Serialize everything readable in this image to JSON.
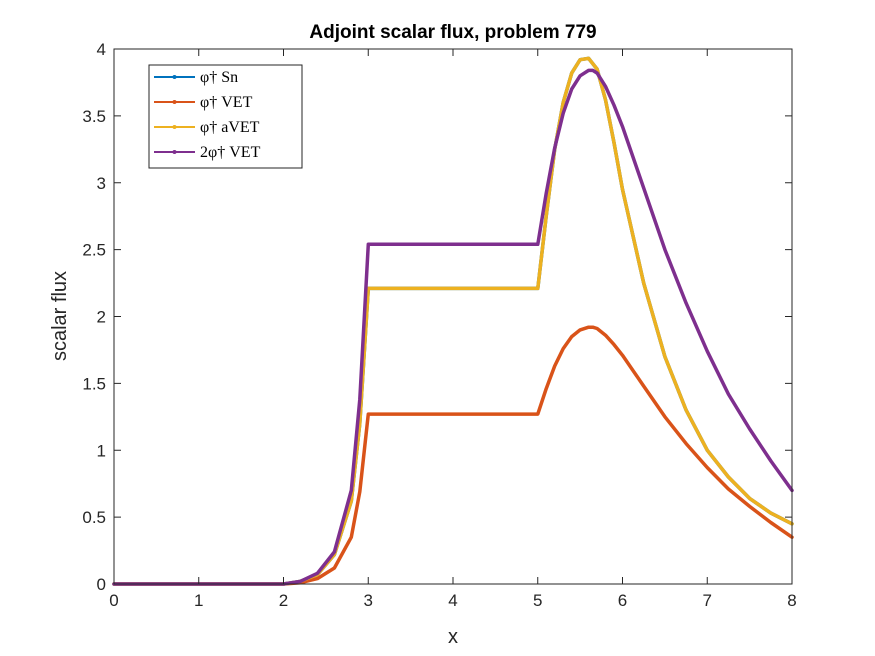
{
  "chart_data": {
    "type": "line",
    "title": "Adjoint scalar flux, problem 779",
    "xlabel": "x",
    "ylabel": "scalar flux",
    "xlim": [
      0,
      8
    ],
    "ylim": [
      0,
      4
    ],
    "xticks": [
      "0",
      "1",
      "2",
      "3",
      "4",
      "5",
      "6",
      "7",
      "8"
    ],
    "yticks": [
      "0",
      "0.5",
      "1",
      "1.5",
      "2",
      "2.5",
      "3",
      "3.5",
      "4"
    ],
    "grid": false,
    "legend_position": "top-left",
    "series": [
      {
        "name": "φ† Sn",
        "color": "#0072BD",
        "x": [
          0,
          1,
          2,
          2.2,
          2.4,
          2.6,
          2.8,
          2.9,
          3.0,
          3.5,
          4.0,
          4.5,
          5.0,
          5.1,
          5.2,
          5.3,
          5.4,
          5.5,
          5.6,
          5.7,
          5.8,
          5.9,
          6.0,
          6.25,
          6.5,
          6.75,
          7.0,
          7.25,
          7.5,
          7.75,
          8.0
        ],
        "y": [
          0,
          0,
          0,
          0.02,
          0.07,
          0.22,
          0.62,
          1.2,
          2.21,
          2.21,
          2.21,
          2.21,
          2.21,
          2.75,
          3.25,
          3.6,
          3.82,
          3.92,
          3.93,
          3.85,
          3.62,
          3.3,
          2.95,
          2.25,
          1.7,
          1.3,
          1.0,
          0.8,
          0.64,
          0.53,
          0.45
        ]
      },
      {
        "name": "φ† VET",
        "color": "#D95319",
        "x": [
          0,
          1,
          2,
          2.2,
          2.4,
          2.6,
          2.8,
          2.9,
          3.0,
          3.5,
          4.0,
          4.5,
          5.0,
          5.1,
          5.2,
          5.3,
          5.4,
          5.5,
          5.6,
          5.65,
          5.7,
          5.8,
          5.9,
          6.0,
          6.25,
          6.5,
          6.75,
          7.0,
          7.25,
          7.5,
          7.75,
          8.0
        ],
        "y": [
          0,
          0,
          0,
          0.01,
          0.04,
          0.12,
          0.35,
          0.69,
          1.27,
          1.27,
          1.27,
          1.27,
          1.27,
          1.46,
          1.63,
          1.76,
          1.85,
          1.9,
          1.92,
          1.92,
          1.91,
          1.86,
          1.79,
          1.71,
          1.48,
          1.25,
          1.05,
          0.87,
          0.71,
          0.58,
          0.46,
          0.35
        ]
      },
      {
        "name": "φ† aVET",
        "color": "#EDB120",
        "x": [
          0,
          1,
          2,
          2.2,
          2.4,
          2.6,
          2.8,
          2.9,
          3.0,
          3.5,
          4.0,
          4.5,
          5.0,
          5.1,
          5.2,
          5.3,
          5.4,
          5.5,
          5.6,
          5.7,
          5.8,
          5.9,
          6.0,
          6.25,
          6.5,
          6.75,
          7.0,
          7.25,
          7.5,
          7.75,
          8.0
        ],
        "y": [
          0,
          0,
          0,
          0.02,
          0.07,
          0.22,
          0.62,
          1.2,
          2.21,
          2.21,
          2.21,
          2.21,
          2.21,
          2.75,
          3.25,
          3.6,
          3.82,
          3.92,
          3.93,
          3.85,
          3.62,
          3.3,
          2.95,
          2.25,
          1.7,
          1.3,
          1.0,
          0.8,
          0.64,
          0.53,
          0.45
        ]
      },
      {
        "name": "2φ† VET",
        "color": "#7E2F8E",
        "x": [
          0,
          1,
          2,
          2.2,
          2.4,
          2.6,
          2.8,
          2.9,
          3.0,
          3.5,
          4.0,
          4.5,
          5.0,
          5.1,
          5.2,
          5.3,
          5.4,
          5.5,
          5.6,
          5.65,
          5.7,
          5.8,
          5.9,
          6.0,
          6.25,
          6.5,
          6.75,
          7.0,
          7.25,
          7.5,
          7.75,
          8.0
        ],
        "y": [
          0,
          0,
          0,
          0.02,
          0.08,
          0.24,
          0.7,
          1.38,
          2.54,
          2.54,
          2.54,
          2.54,
          2.54,
          2.92,
          3.26,
          3.52,
          3.7,
          3.8,
          3.84,
          3.84,
          3.82,
          3.72,
          3.58,
          3.42,
          2.96,
          2.5,
          2.1,
          1.74,
          1.42,
          1.16,
          0.92,
          0.7
        ]
      }
    ]
  }
}
